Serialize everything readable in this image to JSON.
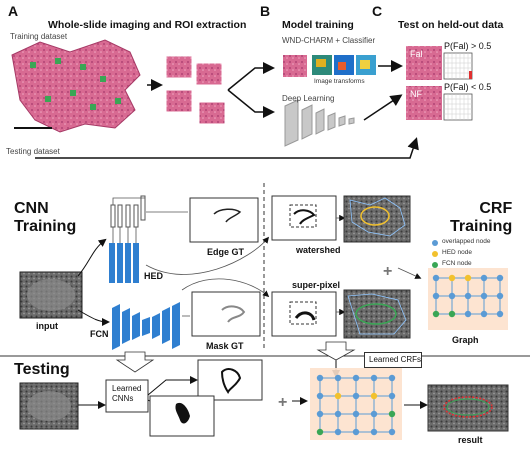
{
  "top": {
    "panel_a": {
      "letter": "A",
      "title": "Whole-slide imaging and ROI extraction",
      "training_label": "Training dataset"
    },
    "panel_b": {
      "letter": "B",
      "title": "Model training",
      "method1": "WND-CHARM + Classifier",
      "method1_sub": "Image transforms",
      "method2": "Deep Learning"
    },
    "panel_c": {
      "letter": "C",
      "title": "Test on held-out data",
      "row1_tag": "Fal",
      "row1_rule": "P(Fal) > 0.5",
      "row2_tag": "NF",
      "row2_rule": "P(Fal) < 0.5"
    },
    "testing_label": "Testing dataset"
  },
  "bottom": {
    "cnn_training": "CNN\nTraining",
    "crf_training": "CRF\nTraining",
    "testing": "Testing",
    "hed": "HED",
    "fcn": "FCN",
    "input": "input",
    "edge_gt": "Edge GT",
    "mask_gt": "Mask GT",
    "watershed": "watershed",
    "super_pixel": "super-pixel",
    "graph": "Graph",
    "learned_crfs": "Learned CRFs",
    "learned_cnns": "Learned\nCNNs",
    "result": "result",
    "legend": [
      {
        "label": "overlapped node",
        "color": "#5b9bd5"
      },
      {
        "label": "HED node",
        "color": "#f2c12e"
      },
      {
        "label": "FCN node",
        "color": "#3aa655"
      }
    ]
  },
  "colors": {
    "tissue": "#d86a92",
    "cnn_blue": "#2f7fd0",
    "graph_blue": "#5b9bd5",
    "graph_green": "#3aa655",
    "graph_yellow": "#f2c12e"
  }
}
